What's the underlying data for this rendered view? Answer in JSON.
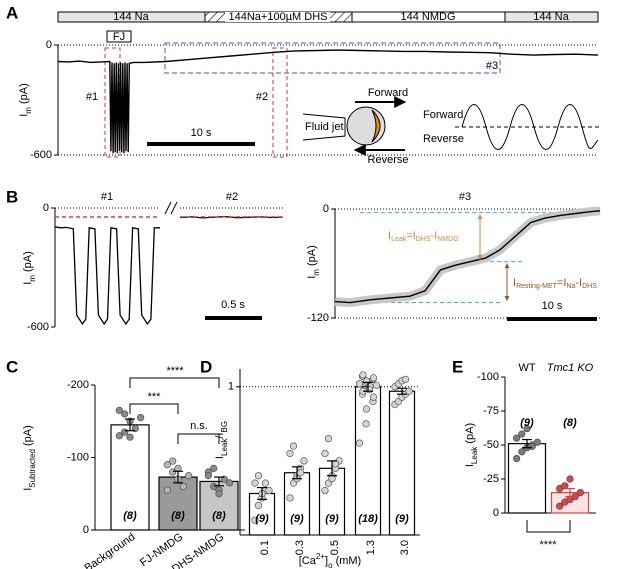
{
  "chart_data": [
    {
      "panel": "A",
      "type": "trace_overview",
      "solutions": [
        "144 Na",
        "144Na+100µM DHS",
        "144 NMDG",
        "144 Na"
      ],
      "stimulus": "FJ",
      "regions": [
        "#1",
        "#2",
        "#3"
      ],
      "y_label": [
        "I",
        "m",
        " (pA)"
      ],
      "xlim": [
        0,
        50
      ],
      "ylim": [
        -600,
        0
      ],
      "yticks": [
        0,
        -600
      ],
      "grid": true,
      "x": [
        0,
        1,
        2,
        3,
        4,
        4.8,
        4.9,
        5.0,
        5.1,
        5.2,
        5.3,
        5.4,
        5.5,
        5.6,
        5.7,
        5.8,
        5.9,
        6.0,
        6.1,
        6.2,
        6.3,
        6.4,
        6.5,
        6.6,
        7,
        8,
        10,
        12,
        14,
        16,
        18,
        20,
        22,
        24,
        26,
        28,
        30,
        32,
        34,
        36,
        38,
        40,
        42,
        44,
        46,
        48,
        50
      ],
      "values": [
        -90,
        -92,
        -88,
        -95,
        -92,
        -90,
        -580,
        -95,
        -590,
        -100,
        -585,
        -95,
        -590,
        -100,
        -580,
        -95,
        -585,
        -100,
        -590,
        -95,
        -580,
        -100,
        -585,
        -100,
        -95,
        -95,
        -90,
        -80,
        -70,
        -60,
        -50,
        -40,
        -32,
        -30,
        -28,
        -30,
        -32,
        -35,
        -35,
        -38,
        -40,
        -42,
        -50,
        -55,
        -52,
        -50,
        -55
      ],
      "color": "#000000",
      "scale_bar": "10 s",
      "inset": {
        "fluid_jet": "Fluid jet",
        "arrows": [
          "Forward",
          "Reverse"
        ],
        "wave_labels": [
          "Forward",
          "Reverse"
        ]
      }
    },
    {
      "panel": "B",
      "type": "trace_zoom",
      "plots": [
        {
          "y_label": [
            "I",
            "m",
            " (pA)"
          ],
          "ylim": [
            -600,
            0
          ],
          "yticks": [
            0,
            -600
          ],
          "grid": true,
          "xlim": [
            0,
            0.92
          ],
          "ref_level": -45,
          "ref_color": "#e03030",
          "scale_bar": "0.5 s",
          "traces": [
            {
              "name": "#1",
              "x": [
                0,
                0.05,
                0.1,
                0.16,
                0.19,
                0.24,
                0.27,
                0.3,
                0.35,
                0.38,
                0.43,
                0.46,
                0.49,
                0.54,
                0.57,
                0.62,
                0.65,
                0.68,
                0.73,
                0.76,
                0.81,
                0.84,
                0.87,
                0.92
              ],
              "values": [
                -95,
                -100,
                -98,
                -105,
                -540,
                -585,
                -560,
                -100,
                -105,
                -540,
                -585,
                -560,
                -100,
                -105,
                -540,
                -585,
                -560,
                -100,
                -105,
                -540,
                -585,
                -560,
                -100,
                -100
              ]
            },
            {
              "name": "#2",
              "x": [
                0,
                0.1,
                0.2,
                0.3,
                0.4,
                0.5,
                0.6,
                0.7,
                0.8,
                0.9
              ],
              "values": [
                -48,
                -45,
                -50,
                -46,
                -44,
                -49,
                -47,
                -45,
                -48,
                -46
              ]
            }
          ]
        },
        {
          "y_label": [
            "I",
            "m",
            " (pA)"
          ],
          "ylim": [
            -120,
            0
          ],
          "yticks": [
            0,
            -120
          ],
          "grid": true,
          "xlim": [
            0,
            29.4
          ],
          "levels": [
            -4,
            -58,
            -103
          ],
          "level_color": "#30b8c8",
          "scale_bar": "10 s",
          "annotations": [
            [
              "I",
              "Leak",
              "=I",
              "DHS",
              "-I",
              "NMDG"
            ],
            [
              "I",
              "Resting-MET",
              "=I",
              "Na",
              "-I",
              "DHS"
            ]
          ],
          "annotation_colors": [
            "#d08a3c",
            "#8b5a2b"
          ],
          "traces": [
            {
              "name": "#3",
              "x": [
                0,
                1.7,
                3.9,
                6.1,
                8.3,
                10,
                11.7,
                13.3,
                15,
                16.7,
                18.3,
                20,
                21.7,
                23.3,
                25,
                26.7,
                28.3,
                29.4
              ],
              "values": [
                -102,
                -103,
                -100,
                -98,
                -96,
                -90,
                -67,
                -62,
                -58,
                -54,
                -45,
                -30,
                -15,
                -10,
                -7,
                -5,
                -3,
                -2
              ]
            }
          ]
        }
      ]
    },
    {
      "panel": "C",
      "type": "bar",
      "categories": [
        "Background",
        "FJ-NMDG",
        "DHS-NMDG"
      ],
      "values": [
        -145,
        -73,
        -67
      ],
      "errors": [
        8,
        8,
        6
      ],
      "points": [
        [
          -130,
          -160,
          -150,
          -140,
          -155,
          -165,
          -135,
          -128
        ],
        [
          -90,
          -95,
          -70,
          -60,
          -75,
          -55,
          -80,
          -85
        ],
        [
          -80,
          -60,
          -55,
          -70,
          -65,
          -75,
          -85,
          -50
        ]
      ],
      "n_labels": [
        "(8)",
        "(8)",
        "(8)"
      ],
      "colors": [
        "#ffffff",
        "#9a9a9a",
        "#c6c6c6"
      ],
      "edge_colors": [
        "#000000",
        "#000000",
        "#000000"
      ],
      "point_colors": [
        "#8a8a8a",
        "#b4b4b4",
        "#8a8a8a"
      ],
      "y_label": [
        "I",
        "Subtracted",
        " (pA)"
      ],
      "ylim": [
        0,
        -200
      ],
      "yticks": [
        -200,
        -100,
        0
      ],
      "grid": false,
      "significance": [
        "****",
        "***",
        "n.s."
      ]
    },
    {
      "panel": "D",
      "type": "bar",
      "categories": [
        "0.1",
        "0.3",
        "0.5",
        "1.3",
        "3.0"
      ],
      "values": [
        0.28,
        0.42,
        0.45,
        1.0,
        0.97
      ],
      "errors": [
        0.04,
        0.04,
        0.05,
        0.03,
        0.02
      ],
      "points": [
        [
          0.1,
          0.2,
          0.25,
          0.3,
          0.3,
          0.35,
          0.4,
          0.28,
          0.35
        ],
        [
          0.25,
          0.35,
          0.4,
          0.45,
          0.5,
          0.55,
          0.6,
          0.38,
          0.42
        ],
        [
          0.3,
          0.35,
          0.4,
          0.45,
          0.5,
          0.55,
          0.65,
          0.38,
          0.48
        ],
        [
          0.62,
          0.75,
          0.85,
          0.9,
          0.93,
          0.95,
          0.97,
          0.99,
          1.0,
          1.01,
          1.02,
          1.03,
          1.04,
          1.05,
          1.06,
          1.07,
          1.08,
          0.98
        ],
        [
          0.88,
          0.9,
          0.93,
          0.95,
          0.97,
          1.0,
          1.02,
          1.04,
          1.05
        ]
      ],
      "n_labels": [
        "(9)",
        "(9)",
        "(9)",
        "(18)",
        "(9)"
      ],
      "colors": [
        "#ffffff",
        "#ffffff",
        "#ffffff",
        "#ffffff",
        "#ffffff"
      ],
      "edge_colors": [
        "#000000",
        "#000000",
        "#000000",
        "#000000",
        "#000000"
      ],
      "point_colors": [
        "#d4d4d4",
        "#d4d4d4",
        "#d4d4d4",
        "#d4d4d4",
        "#d4d4d4"
      ],
      "y_label": [
        "I",
        "Leak",
        "/I",
        "BG"
      ],
      "x_label": [
        "[Ca",
        "2+",
        "]",
        "o",
        " (mM)"
      ],
      "ylim": [
        0,
        1.12
      ],
      "yticks": [
        1
      ],
      "grid": true
    },
    {
      "panel": "E",
      "type": "bar",
      "categories": [
        "WT",
        "Tmc1 KO"
      ],
      "values": [
        -51,
        -15
      ],
      "errors": [
        3,
        3
      ],
      "points": [
        [
          -40,
          -45,
          -48,
          -50,
          -52,
          -55,
          -58,
          -62,
          -49
        ],
        [
          -5,
          -8,
          -10,
          -12,
          -15,
          -18,
          -20,
          -25
        ]
      ],
      "n_labels": [
        "(9)",
        "(8)"
      ],
      "colors": [
        "#ffffff",
        "#fde4e4"
      ],
      "edge_colors": [
        "#000000",
        "#e04040"
      ],
      "point_colors": [
        "#7a7a7a",
        "#e04545"
      ],
      "y_label": [
        "I",
        "Leak",
        " (pA)"
      ],
      "ylim": [
        0,
        -100
      ],
      "yticks": [
        0,
        -25,
        -50,
        -75,
        -100
      ],
      "grid": false,
      "significance": [
        "****"
      ]
    }
  ]
}
